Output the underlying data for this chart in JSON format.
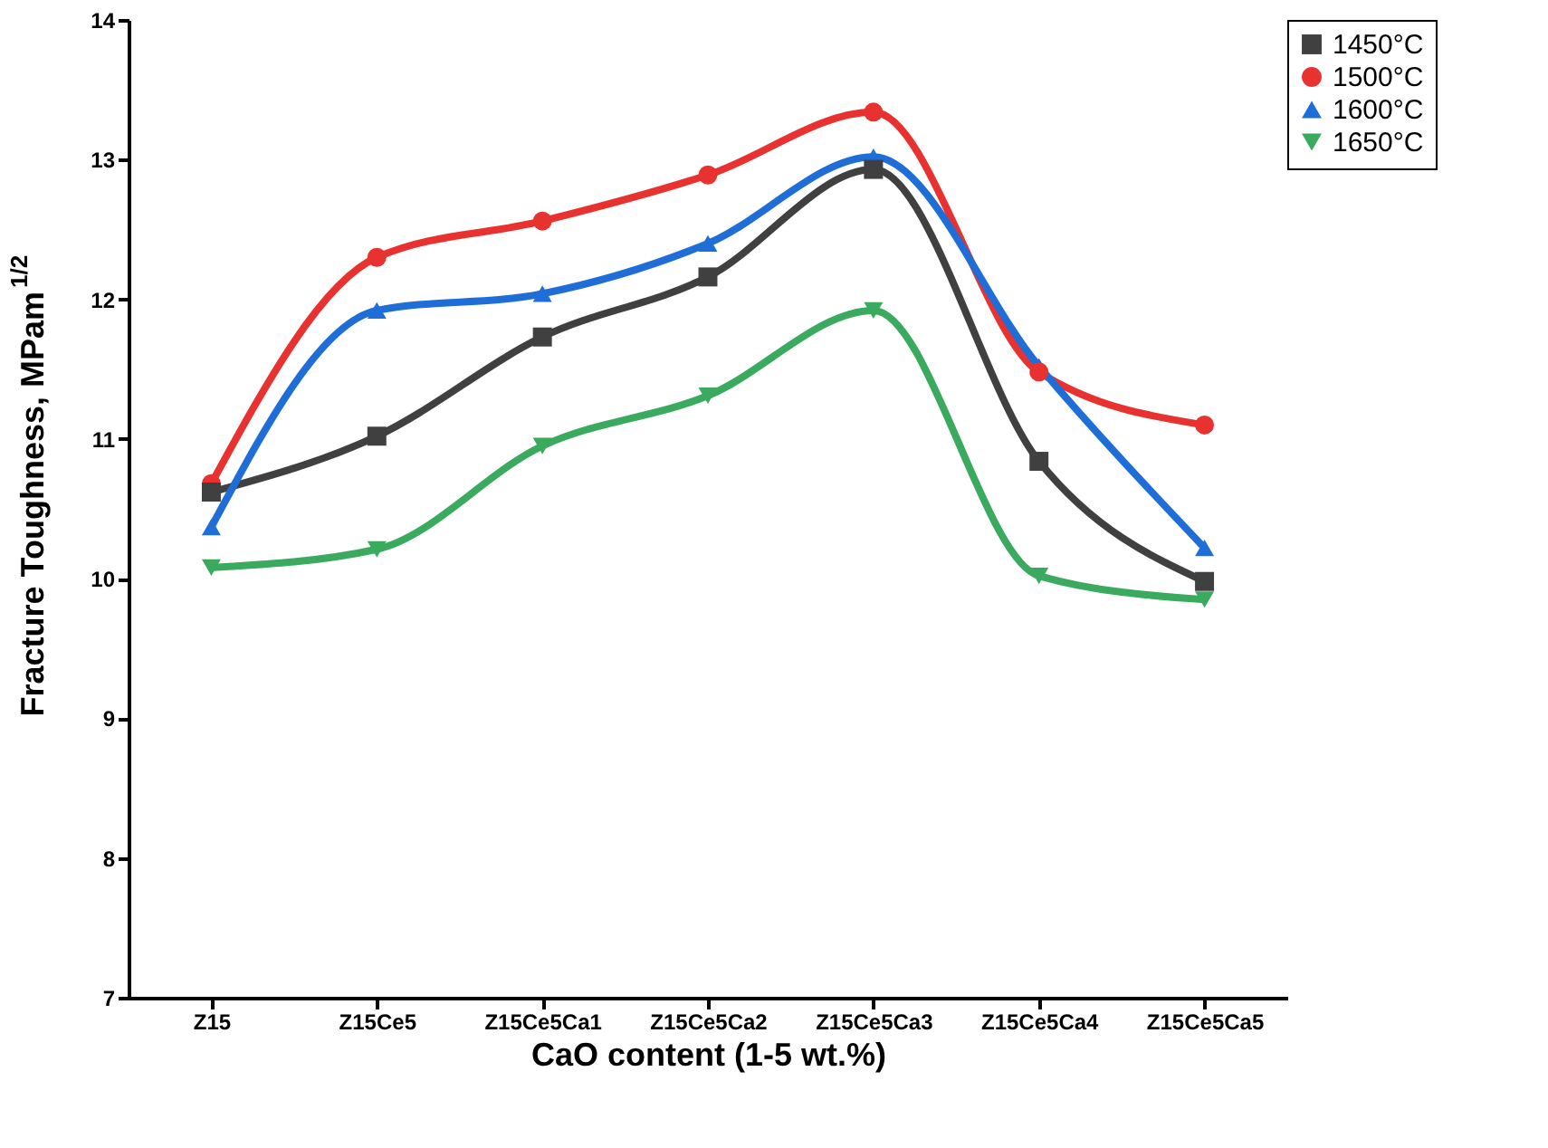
{
  "chart_data": {
    "type": "line",
    "xlabel": "CaO content (1-5 wt.%)",
    "ylabel": "Fracture Toughness, MPam$^{1/2}$",
    "categories": [
      "Z15",
      "Z15Ce5",
      "Z15Ce5Ca1",
      "Z15Ce5Ca2",
      "Z15Ce5Ca3",
      "Z15Ce5Ca4",
      "Z15Ce5Ca5"
    ],
    "series": [
      {
        "name": "1450°C",
        "color": "#404040",
        "marker": "square",
        "values": [
          10.62,
          11.02,
          11.73,
          12.16,
          12.93,
          10.84,
          9.98
        ]
      },
      {
        "name": "1500°C",
        "color": "#e8322f",
        "marker": "circle",
        "values": [
          10.68,
          12.3,
          12.56,
          12.89,
          13.34,
          11.48,
          11.1
        ]
      },
      {
        "name": "1600°C",
        "color": "#1f6ed8",
        "marker": "triangle",
        "values": [
          10.37,
          11.92,
          12.04,
          12.4,
          13.02,
          11.52,
          10.22
        ]
      },
      {
        "name": "1650°C",
        "color": "#3aaa5f",
        "marker": "triangle-down",
        "values": [
          10.08,
          10.21,
          10.95,
          11.31,
          11.92,
          10.02,
          9.85
        ]
      }
    ],
    "ylim": [
      7,
      14
    ],
    "yticks": [
      7,
      8,
      9,
      10,
      11,
      12,
      13,
      14
    ],
    "grid": false,
    "legend": "top right",
    "line_style": "solid"
  }
}
